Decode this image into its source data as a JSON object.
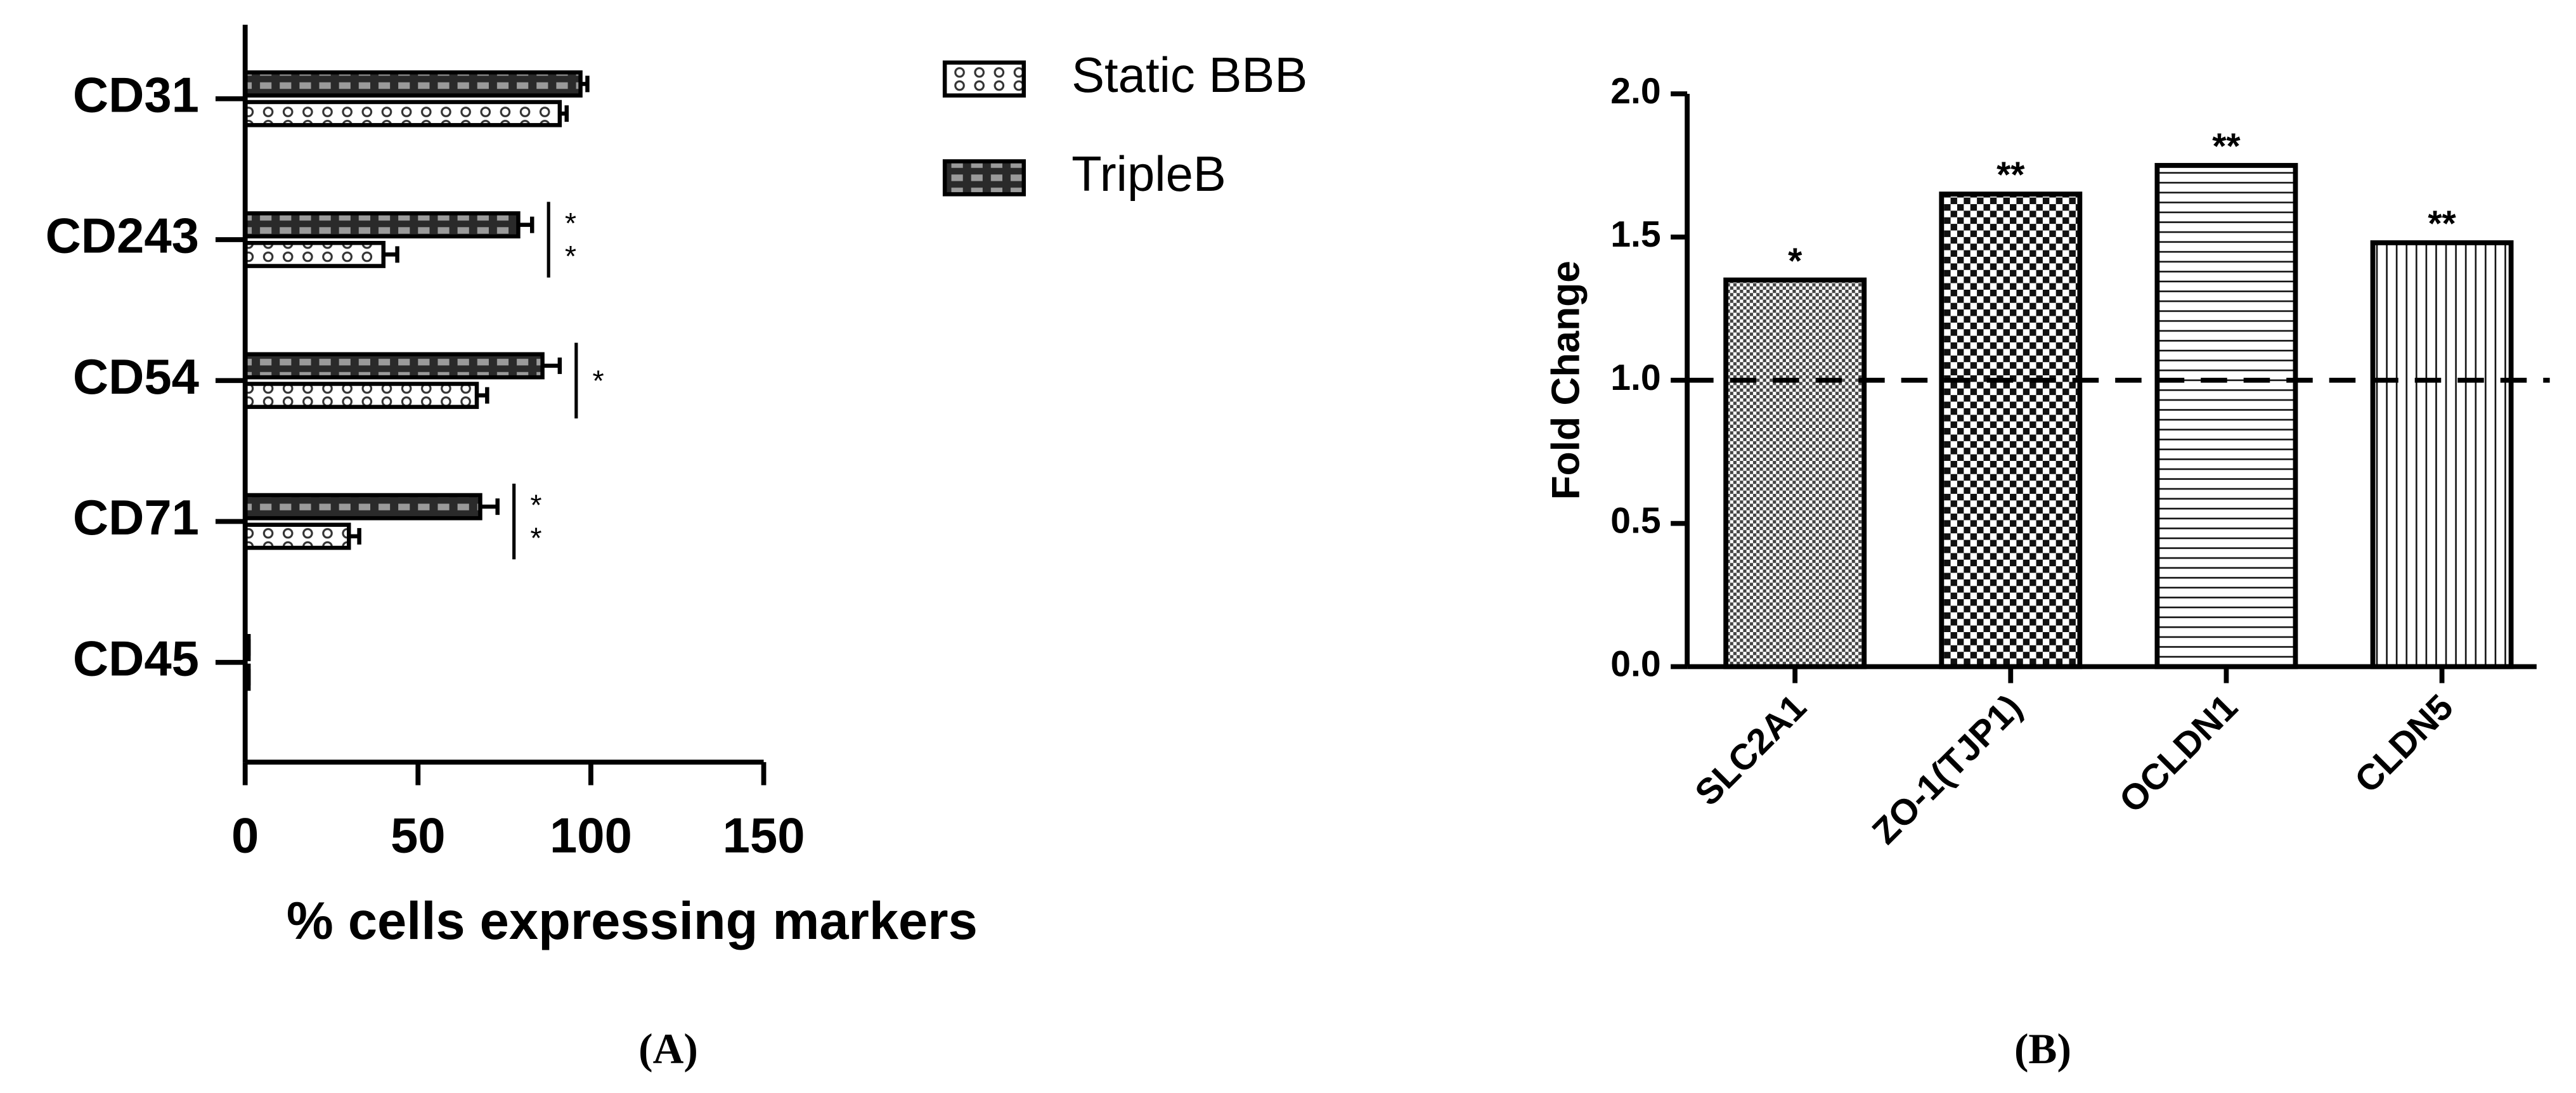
{
  "chart_data": [
    {
      "type": "hbar",
      "caption": "(A)",
      "xlabel": "% cells expressing markers",
      "categories": [
        "CD31",
        "CD243",
        "CD54",
        "CD71",
        "CD45"
      ],
      "series": [
        {
          "name": "Static BBB",
          "values": [
            91,
            40,
            67,
            30,
            1
          ],
          "errors": [
            2,
            4,
            3,
            3,
            0
          ]
        },
        {
          "name": "TripleB",
          "values": [
            97,
            79,
            86,
            68,
            1
          ],
          "errors": [
            2,
            4,
            5,
            5,
            0
          ]
        }
      ],
      "significance": [
        null,
        "**",
        "*",
        "**",
        null
      ],
      "xlim": [
        0,
        150
      ],
      "xticks": [
        0,
        50,
        100,
        150
      ]
    },
    {
      "type": "bar",
      "caption": "(B)",
      "ylabel": "Fold Change",
      "categories": [
        "SLC2A1",
        "ZO-1(TJP1)",
        "OCLDN1",
        "CLDN5"
      ],
      "values": [
        1.35,
        1.65,
        1.75,
        1.48
      ],
      "significance": [
        "*",
        "**",
        "**",
        "**"
      ],
      "reference_line": 1,
      "ylim": [
        0,
        2
      ],
      "yticks": [
        {
          "value": 0,
          "label": "0.0"
        },
        0.5,
        {
          "value": 1,
          "label": "1.0"
        },
        1.5,
        {
          "value": 2,
          "label": "2.0"
        }
      ]
    }
  ]
}
